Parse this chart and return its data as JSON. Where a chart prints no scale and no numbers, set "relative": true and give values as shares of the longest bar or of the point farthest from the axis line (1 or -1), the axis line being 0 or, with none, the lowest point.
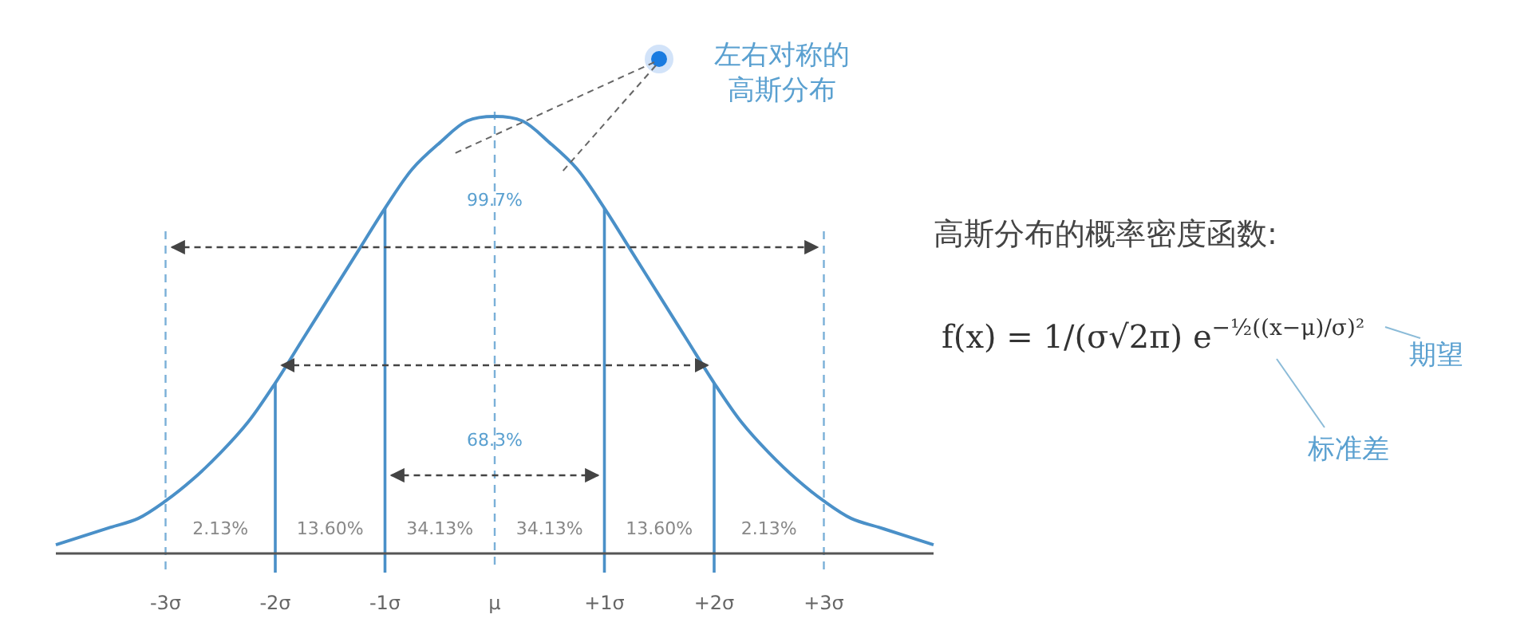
{
  "chart_data": {
    "type": "line",
    "relative": true,
    "x": [
      -4,
      -3.75,
      -3.5,
      -3.25,
      -3,
      -2.75,
      -2.5,
      -2.25,
      -2,
      -1.75,
      -1.5,
      -1.25,
      -1,
      -0.75,
      -0.5,
      -0.25,
      0,
      0.25,
      0.5,
      0.75,
      1,
      1.25,
      1.5,
      1.75,
      2,
      2.25,
      2.5,
      2.75,
      3,
      3.25,
      3.5,
      3.75,
      4
    ],
    "series": [
      {
        "color": "#4a90c8",
        "values": [
          0.02,
          0.04,
          0.06,
          0.08,
          0.12,
          0.17,
          0.23,
          0.3,
          0.39,
          0.49,
          0.59,
          0.69,
          0.79,
          0.88,
          0.94,
          0.99,
          1,
          0.99,
          0.94,
          0.88,
          0.79,
          0.69,
          0.59,
          0.49,
          0.39,
          0.3,
          0.23,
          0.17,
          0.12,
          0.08,
          0.06,
          0.04,
          0.02
        ]
      }
    ],
    "xlim": [
      -4,
      4
    ],
    "xticks": [
      {
        "value": -3,
        "label": "-3σ"
      },
      {
        "value": -2,
        "label": "-2σ"
      },
      {
        "value": -1,
        "label": "-1σ"
      },
      {
        "value": 0,
        "label": "μ"
      },
      {
        "value": 1,
        "label": "+1σ"
      },
      {
        "value": 2,
        "label": "+2σ"
      },
      {
        "value": 3,
        "label": "+3σ"
      }
    ],
    "marker": "none",
    "grid": false,
    "ref_lines": [
      {
        "axis": "x",
        "value": -3,
        "line_style": "dashed",
        "color": "#7ab0d8"
      },
      {
        "axis": "x",
        "value": 0,
        "line_style": "dashed",
        "color": "#7ab0d8"
      },
      {
        "axis": "x",
        "value": 3,
        "line_style": "dashed",
        "color": "#7ab0d8"
      },
      {
        "axis": "x",
        "value": -2,
        "line_style": "solid",
        "color": "#4a90c8"
      },
      {
        "axis": "x",
        "value": -1,
        "line_style": "solid",
        "color": "#4a90c8"
      },
      {
        "axis": "x",
        "value": 1,
        "line_style": "solid",
        "color": "#4a90c8"
      },
      {
        "axis": "x",
        "value": 2,
        "line_style": "solid",
        "color": "#4a90c8"
      }
    ],
    "annotations": [
      "左右对称的",
      "高斯分布",
      "高斯分布的概率密度函数:",
      "f(x) = 1/(σ√2π) e$^{−½((x−μ)/σ)²}$",
      "期望",
      "标准差",
      {
        "text": "99.7%",
        "x": 0,
        "y": 0.81
      },
      {
        "text": "68.3%",
        "x": 0,
        "y": 0.26
      },
      "2.13%",
      "13.60%",
      "34.13%",
      "34.13%",
      "13.60%",
      "2.13%"
    ]
  }
}
